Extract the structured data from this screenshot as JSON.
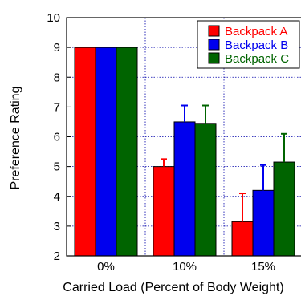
{
  "chart_data": {
    "type": "bar",
    "title": "",
    "xlabel": "Carried Load (Percent of Body Weight)",
    "ylabel": "Preference Rating",
    "categories": [
      "0%",
      "10%",
      "15%"
    ],
    "ylim": [
      2,
      10
    ],
    "yticks": [
      2,
      3,
      4,
      5,
      6,
      7,
      8,
      9,
      10
    ],
    "grid": true,
    "legend_position": "top-right",
    "series": [
      {
        "name": "Backpack A",
        "color": "#ff0000",
        "values": [
          9,
          5.0,
          3.15
        ],
        "errors": [
          0,
          0.25,
          0.95
        ]
      },
      {
        "name": "Backpack B",
        "color": "#0000ee",
        "values": [
          9,
          6.5,
          4.2
        ],
        "errors": [
          0,
          0.55,
          0.85
        ]
      },
      {
        "name": "Backpack C",
        "color": "#006400",
        "values": [
          9,
          6.45,
          5.15
        ],
        "errors": [
          0,
          0.6,
          0.95
        ]
      }
    ]
  }
}
